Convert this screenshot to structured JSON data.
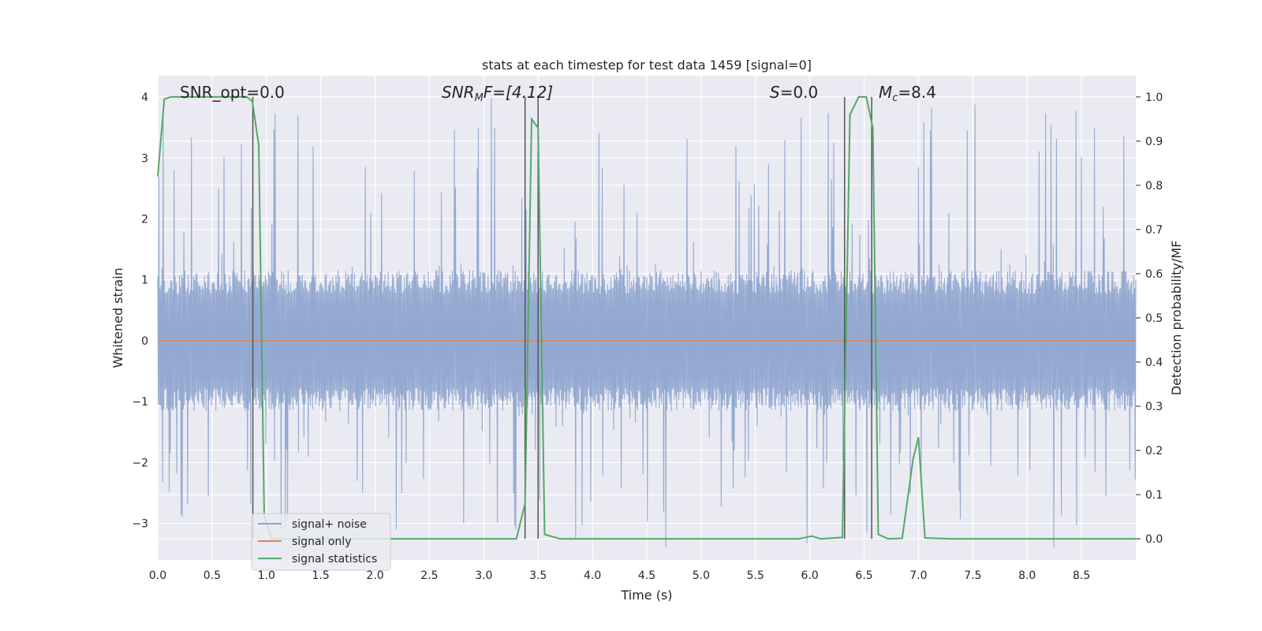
{
  "chart_data": {
    "type": "line",
    "title": "stats at each timestep for test data 1459 [signal=0]",
    "xlabel": "Time (s)",
    "ylabel": "Whitened strain",
    "y2label": "Detection probability/MF",
    "xlim": [
      0,
      9
    ],
    "ylim": [
      -3.6,
      4.35
    ],
    "y2lim": [
      -0.048,
      1.048
    ],
    "xticks": [
      "0.0",
      "0.5",
      "1.0",
      "1.5",
      "2.0",
      "2.5",
      "3.0",
      "3.5",
      "4.0",
      "4.5",
      "5.0",
      "5.5",
      "6.0",
      "6.5",
      "7.0",
      "7.5",
      "8.0",
      "8.5"
    ],
    "yticks": [
      "4",
      "3",
      "2",
      "1",
      "0",
      "−1",
      "−2",
      "−3"
    ],
    "y2ticks": [
      "1.0",
      "0.9",
      "0.8",
      "0.7",
      "0.6",
      "0.5",
      "0.4",
      "0.3",
      "0.2",
      "0.1",
      "0.0"
    ],
    "grid": true,
    "legend_position": "lower-left",
    "annotations": {
      "snr_opt": "SNR_opt=0.0",
      "snr_mf_prefix": "SNR",
      "snr_mf_sub": "M",
      "snr_mf_suffix": "F=[4.12]",
      "s_label": "S",
      "s_value": "=0.0",
      "mc_label": "M",
      "mc_sub": "c",
      "mc_value": "=8.4"
    },
    "vertical_lines_x": [
      0.875,
      3.38,
      3.5,
      6.32,
      6.57
    ],
    "series": [
      {
        "name": "signal+ noise",
        "color": "#8fa5cf",
        "axis": "left",
        "envelope": {
          "typical_low": -1.1,
          "typical_high": 1.1,
          "peak_low": -3.3,
          "peak_high": 4.0
        }
      },
      {
        "name": "signal only",
        "color": "#dd8452",
        "axis": "left",
        "x": [
          0,
          9
        ],
        "y": [
          0,
          0
        ]
      },
      {
        "name": "signal statistics",
        "color": "#55a868",
        "axis": "right",
        "x": [
          0,
          0.06,
          0.12,
          0.18,
          0.3,
          0.6,
          0.82,
          0.87,
          0.93,
          0.98,
          1.05,
          1.5,
          2.5,
          3.0,
          3.3,
          3.38,
          3.44,
          3.5,
          3.56,
          3.7,
          4.5,
          5.5,
          5.9,
          6.02,
          6.1,
          6.3,
          6.37,
          6.45,
          6.52,
          6.58,
          6.63,
          6.72,
          6.85,
          6.95,
          7.0,
          7.06,
          7.3,
          8.0,
          9.0
        ],
        "y": [
          0.82,
          0.995,
          1.0,
          1.0,
          1.0,
          1.0,
          1.0,
          0.99,
          0.89,
          0.05,
          0.0,
          0.0,
          0.0,
          0.0,
          0.0,
          0.08,
          0.95,
          0.93,
          0.01,
          0.0,
          0.0,
          0.0,
          0.0,
          0.006,
          0.0,
          0.003,
          0.96,
          1.0,
          1.0,
          0.93,
          0.01,
          0.0,
          0.001,
          0.18,
          0.23,
          0.002,
          0.0,
          0.0,
          0.0
        ]
      }
    ]
  }
}
